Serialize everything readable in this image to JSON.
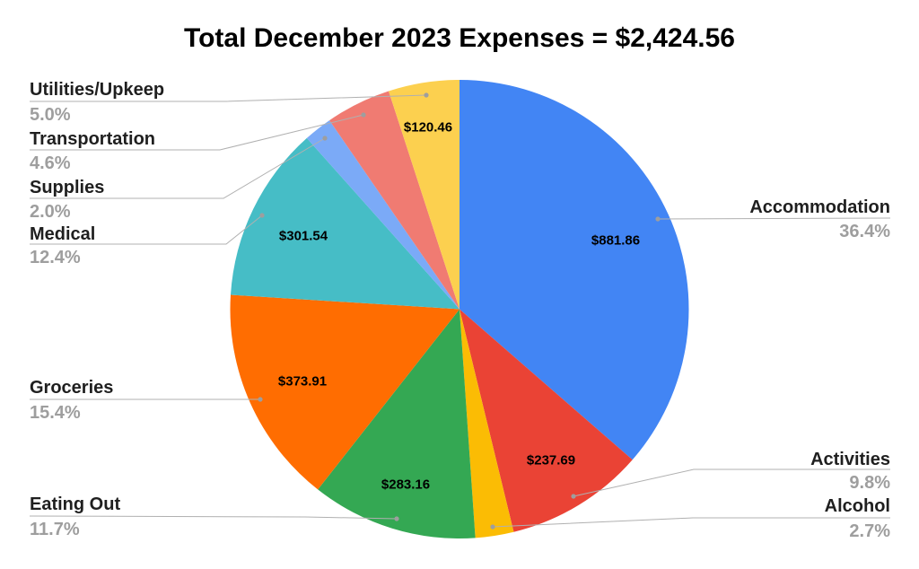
{
  "title": "Total December 2023 Expenses = $2,424.56",
  "colors": {
    "background": "#ffffff",
    "title_text": "#000000",
    "category_text": "#1f1f1f",
    "percent_text": "#9e9e9e",
    "leader_line": "#b0b0b0",
    "leader_dot": "#9e9e9e"
  },
  "chart_data": {
    "type": "pie",
    "title": "Total December 2023 Expenses = $2,424.56",
    "total_label": "$2,424.56",
    "direction": "clockwise",
    "start_angle_deg": 0,
    "legend_position": "outside-callout-labels",
    "slices": [
      {
        "label": "Accommodation",
        "percent": 36.4,
        "percent_label": "36.4%",
        "value_label": "$881.86",
        "color": "#4285F4"
      },
      {
        "label": "Activities",
        "percent": 9.8,
        "percent_label": "9.8%",
        "value_label": "$237.69",
        "color": "#EA4335"
      },
      {
        "label": "Alcohol",
        "percent": 2.7,
        "percent_label": "2.7%",
        "value_label": null,
        "color": "#FBBC04"
      },
      {
        "label": "Eating Out",
        "percent": 11.7,
        "percent_label": "11.7%",
        "value_label": "$283.16",
        "color": "#34A853"
      },
      {
        "label": "Groceries",
        "percent": 15.4,
        "percent_label": "15.4%",
        "value_label": "$373.91",
        "color": "#FF6D01"
      },
      {
        "label": "Medical",
        "percent": 12.4,
        "percent_label": "12.4%",
        "value_label": "$301.54",
        "color": "#46BDC6"
      },
      {
        "label": "Supplies",
        "percent": 2.0,
        "percent_label": "2.0%",
        "value_label": null,
        "color": "#7BAAF7"
      },
      {
        "label": "Transportation",
        "percent": 4.6,
        "percent_label": "4.6%",
        "value_label": null,
        "color": "#F07B72"
      },
      {
        "label": "Utilities/Upkeep",
        "percent": 5.0,
        "percent_label": "5.0%",
        "value_label": "$120.46",
        "color": "#FCD04F"
      }
    ]
  }
}
